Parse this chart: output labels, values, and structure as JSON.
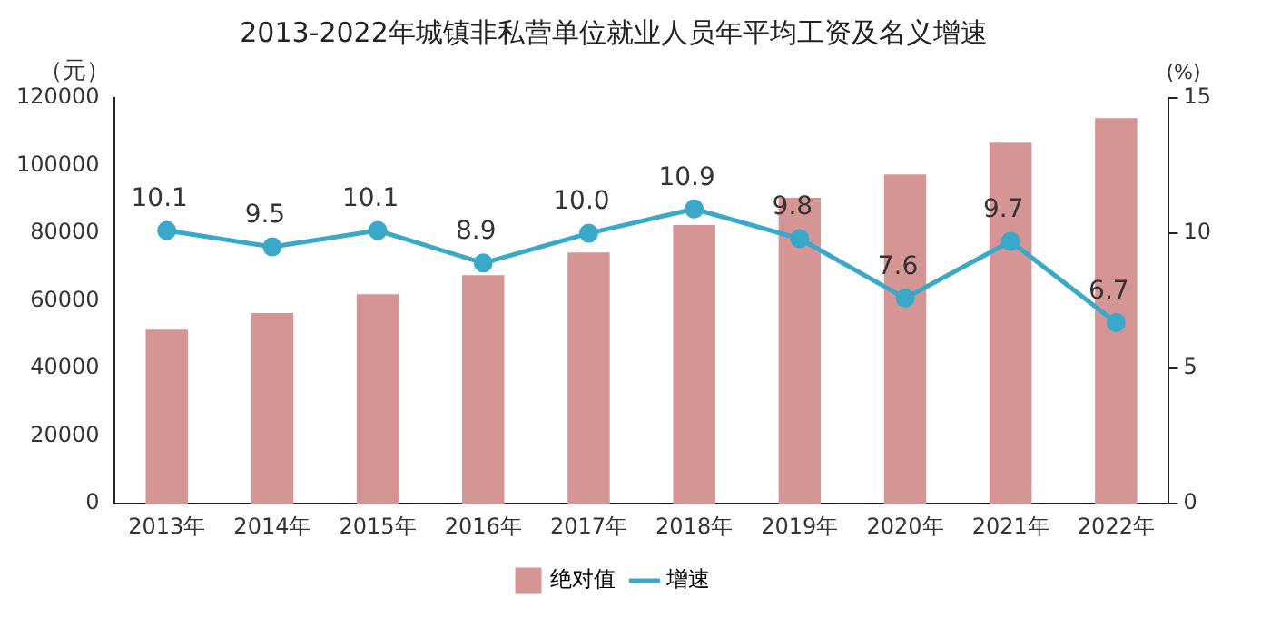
{
  "chart_data": {
    "type": "bar",
    "title": "2013-2022年城镇非私营单位就业人员年平均工资及名义增速",
    "ylabel": "（元）",
    "y2label": "(%)",
    "categories": [
      "2013年",
      "2014年",
      "2015年",
      "2016年",
      "2017年",
      "2018年",
      "2019年",
      "2020年",
      "2021年",
      "2022年"
    ],
    "series": [
      {
        "name": "绝对值",
        "color": "#d59595",
        "values": [
          51500,
          56400,
          62000,
          67600,
          74300,
          82400,
          90500,
          97400,
          106800,
          114000
        ]
      },
      {
        "name": "增速",
        "type": "line",
        "axis": "y2",
        "color": "#3aa8c8",
        "marker": "circle",
        "values": [
          10.1,
          9.5,
          10.1,
          8.9,
          10.0,
          10.9,
          9.8,
          7.6,
          9.7,
          6.7
        ],
        "value_labels": [
          "10.1",
          "9.5",
          "10.1",
          "8.9",
          "10.0",
          "10.9",
          "9.8",
          "7.6",
          "9.7",
          "6.7"
        ]
      }
    ],
    "ylim": [
      0,
      120000
    ],
    "yticks": [
      0,
      20000,
      40000,
      60000,
      80000,
      100000,
      120000
    ],
    "y2lim": [
      0,
      15
    ],
    "y2ticks": [
      0,
      5,
      10,
      15
    ],
    "grid": false,
    "legend": "bottom"
  }
}
